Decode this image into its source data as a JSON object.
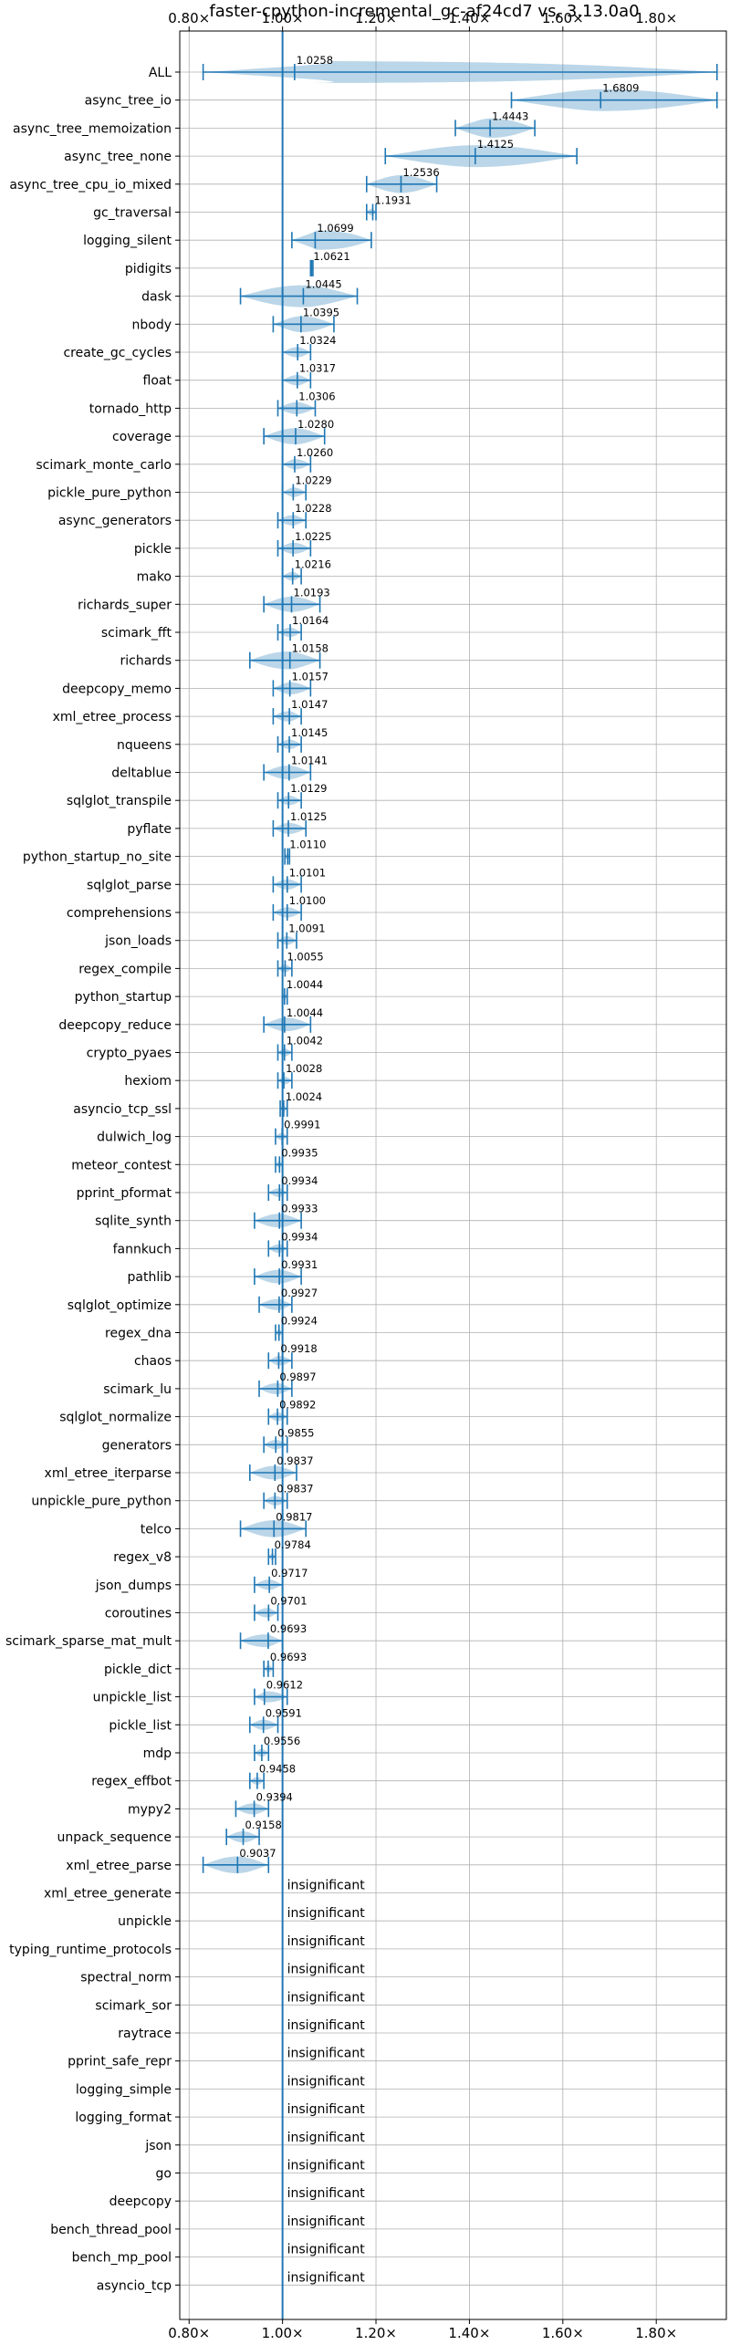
{
  "chart_data": {
    "type": "violin",
    "title": "faster-cpython-incremental_gc-af24cd7 vs. 3.13.0a0",
    "xlim": [
      0.78,
      1.95
    ],
    "xticks": [
      0.8,
      1.0,
      1.2,
      1.4,
      1.6,
      1.8
    ],
    "xtick_labels": [
      "0.80×",
      "1.00×",
      "1.20×",
      "1.40×",
      "1.60×",
      "1.80×"
    ],
    "reference_line": 1.0,
    "grid": true,
    "insignificant_label": "insignificant",
    "benchmarks": [
      {
        "name": "ALL",
        "label": "1.0258",
        "value": 1.0258,
        "min": 0.83,
        "max": 1.93
      },
      {
        "name": "async_tree_io",
        "label": "1.6809",
        "value": 1.6809,
        "min": 1.49,
        "max": 1.93
      },
      {
        "name": "async_tree_memoization",
        "label": "1.4443",
        "value": 1.4443,
        "min": 1.37,
        "max": 1.54
      },
      {
        "name": "async_tree_none",
        "label": "1.4125",
        "value": 1.4125,
        "min": 1.22,
        "max": 1.63
      },
      {
        "name": "async_tree_cpu_io_mixed",
        "label": "1.2536",
        "value": 1.2536,
        "min": 1.18,
        "max": 1.33
      },
      {
        "name": "gc_traversal",
        "label": "1.1931",
        "value": 1.1931,
        "min": 1.18,
        "max": 1.2
      },
      {
        "name": "logging_silent",
        "label": "1.0699",
        "value": 1.0699,
        "min": 1.02,
        "max": 1.19
      },
      {
        "name": "pidigits",
        "label": "1.0621",
        "value": 1.0621,
        "min": 1.06,
        "max": 1.065
      },
      {
        "name": "dask",
        "label": "1.0445",
        "value": 1.0445,
        "min": 0.91,
        "max": 1.16
      },
      {
        "name": "nbody",
        "label": "1.0395",
        "value": 1.0395,
        "min": 0.98,
        "max": 1.11
      },
      {
        "name": "create_gc_cycles",
        "label": "1.0324",
        "value": 1.0324,
        "min": 1.0,
        "max": 1.06
      },
      {
        "name": "float",
        "label": "1.0317",
        "value": 1.0317,
        "min": 1.0,
        "max": 1.06
      },
      {
        "name": "tornado_http",
        "label": "1.0306",
        "value": 1.0306,
        "min": 0.99,
        "max": 1.07
      },
      {
        "name": "coverage",
        "label": "1.0280",
        "value": 1.028,
        "min": 0.96,
        "max": 1.09
      },
      {
        "name": "scimark_monte_carlo",
        "label": "1.0260",
        "value": 1.026,
        "min": 1.0,
        "max": 1.06
      },
      {
        "name": "pickle_pure_python",
        "label": "1.0229",
        "value": 1.0229,
        "min": 1.0,
        "max": 1.05
      },
      {
        "name": "async_generators",
        "label": "1.0228",
        "value": 1.0228,
        "min": 0.99,
        "max": 1.05
      },
      {
        "name": "pickle",
        "label": "1.0225",
        "value": 1.0225,
        "min": 0.99,
        "max": 1.06
      },
      {
        "name": "mako",
        "label": "1.0216",
        "value": 1.0216,
        "min": 1.0,
        "max": 1.04
      },
      {
        "name": "richards_super",
        "label": "1.0193",
        "value": 1.0193,
        "min": 0.96,
        "max": 1.08
      },
      {
        "name": "scimark_fft",
        "label": "1.0164",
        "value": 1.0164,
        "min": 0.99,
        "max": 1.04
      },
      {
        "name": "richards",
        "label": "1.0158",
        "value": 1.0158,
        "min": 0.93,
        "max": 1.08
      },
      {
        "name": "deepcopy_memo",
        "label": "1.0157",
        "value": 1.0157,
        "min": 0.98,
        "max": 1.06
      },
      {
        "name": "xml_etree_process",
        "label": "1.0147",
        "value": 1.0147,
        "min": 0.98,
        "max": 1.04
      },
      {
        "name": "nqueens",
        "label": "1.0145",
        "value": 1.0145,
        "min": 0.99,
        "max": 1.04
      },
      {
        "name": "deltablue",
        "label": "1.0141",
        "value": 1.0141,
        "min": 0.96,
        "max": 1.06
      },
      {
        "name": "sqlglot_transpile",
        "label": "1.0129",
        "value": 1.0129,
        "min": 0.99,
        "max": 1.04
      },
      {
        "name": "pyflate",
        "label": "1.0125",
        "value": 1.0125,
        "min": 0.98,
        "max": 1.05
      },
      {
        "name": "python_startup_no_site",
        "label": "1.0110",
        "value": 1.011,
        "min": 1.005,
        "max": 1.015
      },
      {
        "name": "sqlglot_parse",
        "label": "1.0101",
        "value": 1.0101,
        "min": 0.98,
        "max": 1.04
      },
      {
        "name": "comprehensions",
        "label": "1.0100",
        "value": 1.01,
        "min": 0.98,
        "max": 1.04
      },
      {
        "name": "json_loads",
        "label": "1.0091",
        "value": 1.0091,
        "min": 0.99,
        "max": 1.03
      },
      {
        "name": "regex_compile",
        "label": "1.0055",
        "value": 1.0055,
        "min": 0.99,
        "max": 1.02
      },
      {
        "name": "python_startup",
        "label": "1.0044",
        "value": 1.0044,
        "min": 1.0,
        "max": 1.01
      },
      {
        "name": "deepcopy_reduce",
        "label": "1.0044",
        "value": 1.0044,
        "min": 0.96,
        "max": 1.06
      },
      {
        "name": "crypto_pyaes",
        "label": "1.0042",
        "value": 1.0042,
        "min": 0.99,
        "max": 1.02
      },
      {
        "name": "hexiom",
        "label": "1.0028",
        "value": 1.0028,
        "min": 0.99,
        "max": 1.02
      },
      {
        "name": "asyncio_tcp_ssl",
        "label": "1.0024",
        "value": 1.0024,
        "min": 0.995,
        "max": 1.01
      },
      {
        "name": "dulwich_log",
        "label": "0.9991",
        "value": 0.9991,
        "min": 0.985,
        "max": 1.01
      },
      {
        "name": "meteor_contest",
        "label": "0.9935",
        "value": 0.9935,
        "min": 0.985,
        "max": 1.0
      },
      {
        "name": "pprint_pformat",
        "label": "0.9934",
        "value": 0.9934,
        "min": 0.97,
        "max": 1.01
      },
      {
        "name": "sqlite_synth",
        "label": "0.9933",
        "value": 0.9933,
        "min": 0.94,
        "max": 1.04
      },
      {
        "name": "fannkuch",
        "label": "0.9934",
        "value": 0.9934,
        "min": 0.97,
        "max": 1.01
      },
      {
        "name": "pathlib",
        "label": "0.9931",
        "value": 0.9931,
        "min": 0.94,
        "max": 1.04
      },
      {
        "name": "sqlglot_optimize",
        "label": "0.9927",
        "value": 0.9927,
        "min": 0.95,
        "max": 1.02
      },
      {
        "name": "regex_dna",
        "label": "0.9924",
        "value": 0.9924,
        "min": 0.985,
        "max": 1.0
      },
      {
        "name": "chaos",
        "label": "0.9918",
        "value": 0.9918,
        "min": 0.97,
        "max": 1.02
      },
      {
        "name": "scimark_lu",
        "label": "0.9897",
        "value": 0.9897,
        "min": 0.95,
        "max": 1.02
      },
      {
        "name": "sqlglot_normalize",
        "label": "0.9892",
        "value": 0.9892,
        "min": 0.97,
        "max": 1.01
      },
      {
        "name": "generators",
        "label": "0.9855",
        "value": 0.9855,
        "min": 0.96,
        "max": 1.01
      },
      {
        "name": "xml_etree_iterparse",
        "label": "0.9837",
        "value": 0.9837,
        "min": 0.93,
        "max": 1.03
      },
      {
        "name": "unpickle_pure_python",
        "label": "0.9837",
        "value": 0.9837,
        "min": 0.96,
        "max": 1.01
      },
      {
        "name": "telco",
        "label": "0.9817",
        "value": 0.9817,
        "min": 0.91,
        "max": 1.05
      },
      {
        "name": "regex_v8",
        "label": "0.9784",
        "value": 0.9784,
        "min": 0.97,
        "max": 0.985
      },
      {
        "name": "json_dumps",
        "label": "0.9717",
        "value": 0.9717,
        "min": 0.94,
        "max": 1.0
      },
      {
        "name": "coroutines",
        "label": "0.9701",
        "value": 0.9701,
        "min": 0.94,
        "max": 0.99
      },
      {
        "name": "scimark_sparse_mat_mult",
        "label": "0.9693",
        "value": 0.9693,
        "min": 0.91,
        "max": 1.0
      },
      {
        "name": "pickle_dict",
        "label": "0.9693",
        "value": 0.9693,
        "min": 0.96,
        "max": 0.98
      },
      {
        "name": "unpickle_list",
        "label": "0.9612",
        "value": 0.9612,
        "min": 0.94,
        "max": 1.01
      },
      {
        "name": "pickle_list",
        "label": "0.9591",
        "value": 0.9591,
        "min": 0.93,
        "max": 0.99
      },
      {
        "name": "mdp",
        "label": "0.9556",
        "value": 0.9556,
        "min": 0.94,
        "max": 0.97
      },
      {
        "name": "regex_effbot",
        "label": "0.9458",
        "value": 0.9458,
        "min": 0.93,
        "max": 0.96
      },
      {
        "name": "mypy2",
        "label": "0.9394",
        "value": 0.9394,
        "min": 0.9,
        "max": 0.97
      },
      {
        "name": "unpack_sequence",
        "label": "0.9158",
        "value": 0.9158,
        "min": 0.88,
        "max": 0.95
      },
      {
        "name": "xml_etree_parse",
        "label": "0.9037",
        "value": 0.9037,
        "min": 0.83,
        "max": 0.97
      }
    ],
    "insignificant": [
      "xml_etree_generate",
      "unpickle",
      "typing_runtime_protocols",
      "spectral_norm",
      "scimark_sor",
      "raytrace",
      "pprint_safe_repr",
      "logging_simple",
      "logging_format",
      "json",
      "go",
      "deepcopy",
      "bench_thread_pool",
      "bench_mp_pool",
      "asyncio_tcp"
    ]
  }
}
